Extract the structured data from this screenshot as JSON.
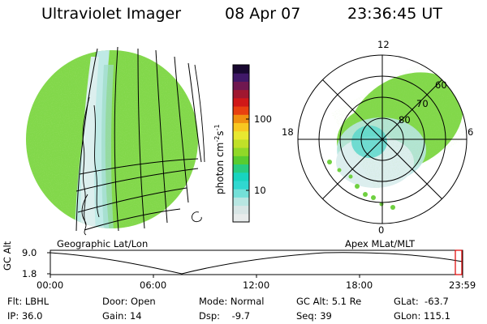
{
  "header": {
    "title": "Ultraviolet Imager",
    "date": "08 Apr 07",
    "time": "23:36:45 UT"
  },
  "left_panel": {
    "caption": "Geographic Lat/Lon"
  },
  "right_panel": {
    "caption": "Apex MLat/MLT",
    "mlt_labels": [
      "12",
      "18",
      "6",
      "0"
    ],
    "mlat_labels": [
      "60",
      "70",
      "80"
    ]
  },
  "colorbar": {
    "unit": "photon cm",
    "unit_sup1": "-2",
    "unit_mid": "s",
    "unit_sup2": "-1",
    "ticks": [
      "100",
      "10"
    ],
    "colors": [
      "#e8ecec",
      "#d8e6e6",
      "#b8e6e2",
      "#74e0d8",
      "#30d8d0",
      "#18d4c0",
      "#28cc80",
      "#58cc30",
      "#90d828",
      "#c0e028",
      "#e8e830",
      "#f8c820",
      "#f09010",
      "#e84010",
      "#d01818",
      "#a01830",
      "#701850",
      "#401868",
      "#180830"
    ]
  },
  "timeline": {
    "ylabel": "GC Alt",
    "y_ticks": [
      "9.0",
      "1.8"
    ],
    "x_ticks": [
      "00:00",
      "06:00",
      "12:00",
      "18:00",
      "23:59"
    ]
  },
  "info": {
    "filter": "Flt: LBHL",
    "ip": "IP: 36.0",
    "door": "Door: Open",
    "gain": "Gain: 14",
    "mode": "Mode: Normal",
    "dsp": "Dsp:    -9.7",
    "gc_alt": "GC Alt: 5.1 Re",
    "seq": "Seq: 39",
    "glat": "GLat:  -63.7",
    "glon": "GLon: 115.1"
  },
  "colors": {
    "aurora_green": "#7fd64a",
    "pale_cyan": "#aee8e4",
    "background": "#ffffff",
    "marker_red": "#e00000"
  }
}
